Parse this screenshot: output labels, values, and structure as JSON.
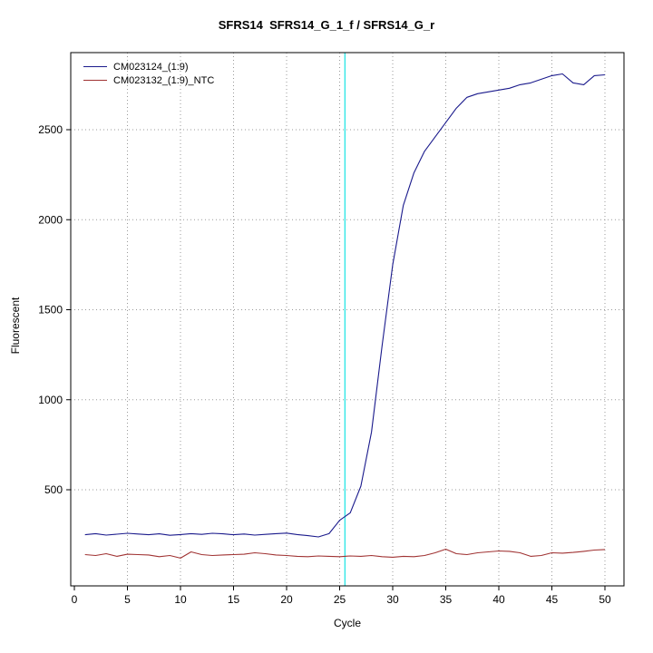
{
  "title_text": "SFRS14  SFRS14_G_1_f / SFRS14_G_r",
  "colors": {
    "series1": "#1a1a8c",
    "series2": "#a03333",
    "threshold": "#33e6e6",
    "grid": "#999999",
    "axis": "#000000",
    "background": "#ffffff"
  },
  "threshold_line": {
    "x": 25.5
  },
  "chart_data": {
    "type": "line",
    "title": "SFRS14  SFRS14_G_1_f / SFRS14_G_r",
    "xlabel": "Cycle",
    "ylabel": "Fluorescent",
    "xlim": [
      0,
      50
    ],
    "ylim": [
      0,
      2900
    ],
    "grid": true,
    "legend_position": "top-left",
    "x_ticks": [
      0,
      5,
      10,
      15,
      20,
      25,
      30,
      35,
      40,
      45,
      50
    ],
    "y_ticks": [
      500,
      1000,
      1500,
      2000,
      2500
    ],
    "threshold_cycle": 25.5,
    "x": [
      1,
      2,
      3,
      4,
      5,
      6,
      7,
      8,
      9,
      10,
      11,
      12,
      13,
      14,
      15,
      16,
      17,
      18,
      19,
      20,
      21,
      22,
      23,
      24,
      25,
      26,
      27,
      28,
      29,
      30,
      31,
      32,
      33,
      34,
      35,
      36,
      37,
      38,
      39,
      40,
      41,
      42,
      43,
      44,
      45,
      46,
      47,
      48,
      49,
      50
    ],
    "series": [
      {
        "name": "CM023124_(1:9)",
        "color": "#1a1a8c",
        "values": [
          250,
          256,
          248,
          253,
          258,
          254,
          250,
          255,
          247,
          251,
          256,
          252,
          258,
          255,
          250,
          254,
          248,
          252,
          256,
          259,
          251,
          245,
          238,
          256,
          330,
          372,
          520,
          820,
          1300,
          1750,
          2080,
          2260,
          2380,
          2460,
          2540,
          2620,
          2680,
          2700,
          2710,
          2720,
          2730,
          2750,
          2760,
          2780,
          2800,
          2810,
          2760,
          2750,
          2800,
          2805
        ]
      },
      {
        "name": "CM023132_(1:9)_NTC",
        "color": "#a03333",
        "values": [
          140,
          135,
          145,
          130,
          142,
          140,
          138,
          128,
          135,
          120,
          155,
          140,
          135,
          138,
          140,
          142,
          150,
          145,
          138,
          135,
          130,
          128,
          132,
          130,
          128,
          132,
          130,
          135,
          128,
          125,
          130,
          128,
          135,
          150,
          170,
          145,
          140,
          150,
          155,
          160,
          158,
          150,
          130,
          135,
          150,
          148,
          152,
          158,
          165,
          168
        ]
      }
    ]
  }
}
